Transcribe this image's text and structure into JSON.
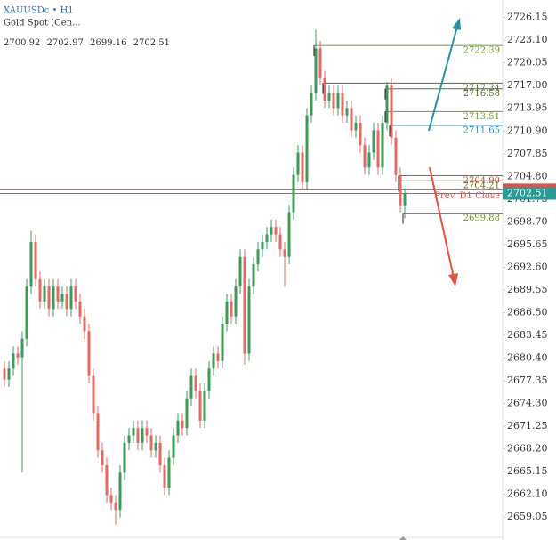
{
  "header": {
    "symbol": "XAUUSDc • H1",
    "description": "Gold Spot (Cen...",
    "ohlc": [
      2700.92,
      2702.97,
      2699.16,
      2702.51
    ]
  },
  "chart_data": {
    "type": "candlestick",
    "open": [
      2679,
      2677.5,
      2679,
      2681,
      2680.5,
      2683,
      2690,
      2696,
      2691,
      2688,
      2690,
      2687,
      2690,
      2688,
      2689,
      2687,
      2690,
      2688,
      2686,
      2684,
      2678,
      2673,
      2668,
      2666,
      2662,
      2661,
      2660,
      2665,
      2669,
      2670,
      2671,
      2669,
      2671,
      2670,
      2668,
      2669,
      2666,
      2663,
      2667,
      2670,
      2672,
      2671,
      2675,
      2678,
      2676,
      2672,
      2676,
      2679,
      2681,
      2680,
      2685,
      2688,
      2686,
      2690,
      2694,
      2681,
      2690,
      2693,
      2695,
      2696,
      2697,
      2698,
      2697,
      2695,
      2694,
      2700,
      2705,
      2708,
      2704,
      2713,
      2716,
      2722,
      2718,
      2715,
      2716,
      2714,
      2716,
      2713,
      2714,
      2711,
      2712,
      2709,
      2706,
      2708,
      2711,
      2706,
      2712,
      2717,
      2710,
      2705,
      2700.92
    ],
    "high": [
      2680,
      2680,
      2682,
      2682,
      2684,
      2691,
      2697.5,
      2697,
      2692,
      2691,
      2691,
      2691,
      2691,
      2690,
      2690,
      2691,
      2691,
      2689,
      2687,
      2685,
      2679,
      2674,
      2669,
      2667,
      2663,
      2662,
      2666,
      2670,
      2671,
      2672,
      2672,
      2672,
      2672,
      2671,
      2670,
      2670,
      2667,
      2668,
      2671,
      2673,
      2673,
      2676,
      2679,
      2679,
      2677,
      2677,
      2680,
      2682,
      2682,
      2686,
      2689,
      2689,
      2691,
      2695,
      2695,
      2691,
      2694,
      2696,
      2697,
      2698,
      2699,
      2699,
      2698,
      2696,
      2701,
      2706,
      2709,
      2709,
      2714,
      2717,
      2724.5,
      2723,
      2719,
      2717,
      2717,
      2717,
      2717,
      2715,
      2715,
      2713,
      2713,
      2710,
      2709,
      2712,
      2712,
      2713,
      2717.5,
      2718,
      2711,
      2706,
      2702.97
    ],
    "low": [
      2676.5,
      2676.5,
      2678,
      2679.5,
      2665,
      2682,
      2689,
      2690,
      2687,
      2687,
      2686,
      2686,
      2687,
      2687,
      2686,
      2686,
      2687,
      2685,
      2683,
      2677,
      2672,
      2667,
      2665,
      2661,
      2660,
      2658,
      2659,
      2664,
      2668,
      2669,
      2668,
      2668,
      2669,
      2667,
      2667,
      2665,
      2662,
      2662,
      2666,
      2669,
      2670,
      2670,
      2674,
      2675,
      2671,
      2671,
      2675,
      2678,
      2679,
      2679,
      2684,
      2685,
      2685,
      2689,
      2679.5,
      2680,
      2689,
      2692,
      2694,
      2695,
      2696,
      2696,
      2694,
      2690,
      2693,
      2699,
      2704,
      2703,
      2703,
      2712,
      2715,
      2717,
      2714,
      2714,
      2713,
      2713,
      2712,
      2712,
      2710,
      2710,
      2708,
      2705,
      2705,
      2707,
      2705,
      2705,
      2711,
      2709,
      2704,
      2700,
      2699.16
    ],
    "close": [
      2677.5,
      2679,
      2681,
      2680.5,
      2683,
      2690,
      2696,
      2691,
      2688,
      2690,
      2687,
      2690,
      2688,
      2689,
      2687,
      2690,
      2688,
      2686,
      2684,
      2678,
      2673,
      2668,
      2666,
      2662,
      2661,
      2660,
      2665,
      2669,
      2670,
      2671,
      2669,
      2671,
      2670,
      2668,
      2669,
      2666,
      2663,
      2667,
      2670,
      2672,
      2671,
      2675,
      2678,
      2676,
      2672,
      2676,
      2679,
      2681,
      2680,
      2685,
      2688,
      2686,
      2690,
      2694,
      2681,
      2690,
      2693,
      2695,
      2696,
      2697,
      2698,
      2697,
      2695,
      2694,
      2700,
      2705,
      2708,
      2704,
      2713,
      2716,
      2722,
      2718,
      2715,
      2716,
      2714,
      2716,
      2713,
      2714,
      2711,
      2712,
      2709,
      2706,
      2708,
      2711,
      2706,
      2712,
      2717,
      2710,
      2705,
      2700.92,
      2702.51
    ],
    "up_color": "#3f9a5a",
    "down_color": "#e06a64",
    "ylim": [
      2656.8,
      2727.9
    ],
    "yticks": [
      2726.15,
      {
        "value": 2723.1,
        "label": "2723.10"
      },
      2720.05,
      {
        "value": 2717,
        "label": "2717.00"
      },
      2713.95,
      {
        "value": 2710.9,
        "label": "2710.90"
      },
      2707.85,
      {
        "value": 2704.8,
        "label": "2704.80"
      },
      2701.75,
      {
        "value": 2698.7,
        "label": "2698.70"
      },
      2695.65,
      {
        "value": 2692.6,
        "label": "2692.60"
      },
      2689.55,
      {
        "value": 2686.5,
        "label": "2686.50"
      },
      2683.45,
      {
        "value": 2680.4,
        "label": "2680.40"
      },
      2677.35,
      {
        "value": 2674.3,
        "label": "2674.30"
      },
      2671.25,
      {
        "value": 2668.2,
        "label": "2668.20"
      },
      2665.15,
      {
        "value": 2662.1,
        "label": "2662.10"
      },
      2659.05
    ],
    "levels": [
      {
        "value": 2722.39,
        "color": "#6f9a2c"
      },
      {
        "value": 2717.34,
        "color": "#55702a"
      },
      {
        "value": 2716.58,
        "color": "#55702a"
      },
      {
        "value": 2713.51,
        "color": "#6f9a2c"
      },
      {
        "value": 2711.65,
        "color": "#3d8fb5"
      },
      {
        "value": 2704.9,
        "label": "2704.90",
        "color": "#b4553c"
      },
      {
        "value": 2704.21,
        "color": "#6c6a2a"
      },
      {
        "value": 2699.88,
        "color": "#6f9a2c"
      }
    ],
    "prev_close": {
      "value": 2703.0,
      "label": "Prev. D1 Close",
      "color": "#d9534f"
    },
    "price_color": "#2b9a94"
  }
}
